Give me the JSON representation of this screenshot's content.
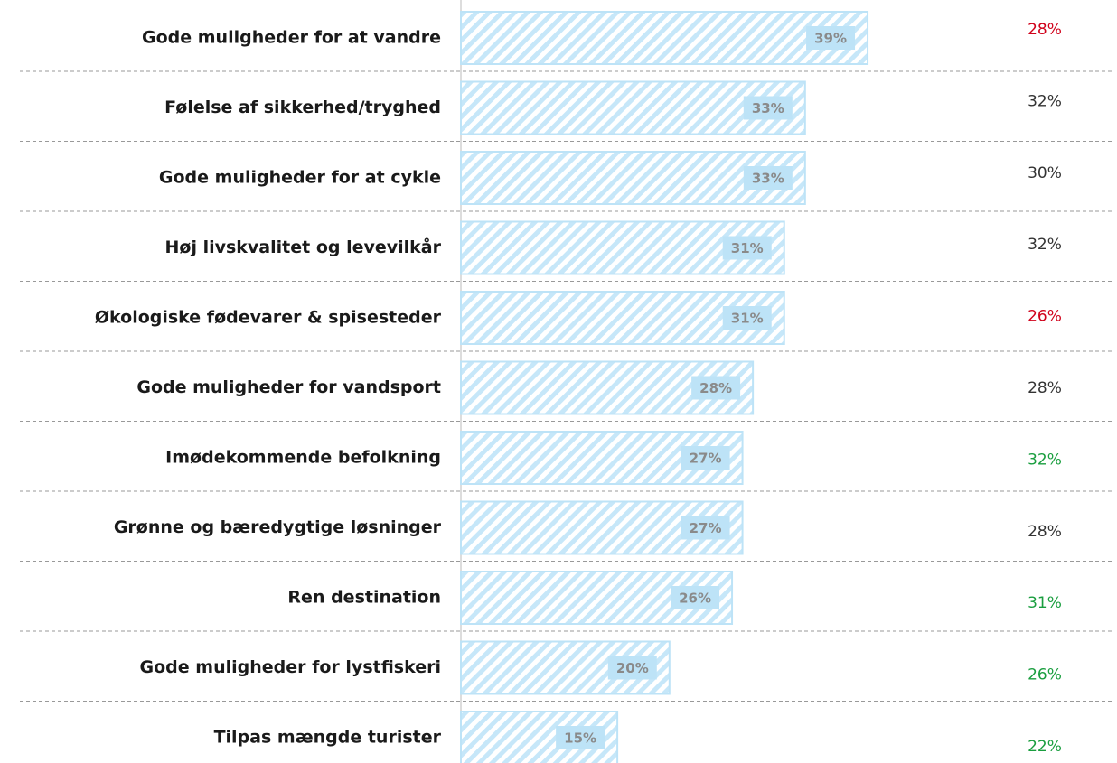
{
  "chart_data": {
    "type": "bar",
    "categories": [
      "Gode muligheder for at vandre",
      "Følelse af sikkerhed/tryghed",
      "Gode muligheder for at cykle",
      "Høj livskvalitet og levevilkår",
      "Økologiske fødevarer & spisesteder",
      "Gode muligheder for vandsport",
      "Imødekommende befolkning",
      "Grønne og bæredygtige løsninger",
      "Ren destination",
      "Gode muligheder for lystfiskeri",
      "Tilpas mængde turister"
    ],
    "series": [
      {
        "color": "#bde3f7",
        "values": [
          39,
          33,
          33,
          31,
          31,
          28,
          27,
          27,
          26,
          20,
          15
        ],
        "value_labels": [
          "39%",
          "33%",
          "33%",
          "31%",
          "31%",
          "28%",
          "27%",
          "27%",
          "26%",
          "20%",
          "15%"
        ]
      },
      {
        "colors": [
          "#d0021b",
          "#333333",
          "#333333",
          "#333333",
          "#d0021b",
          "#333333",
          "#1a9e3f",
          "#333333",
          "#1a9e3f",
          "#1a9e3f",
          "#1a9e3f"
        ],
        "values": [
          28,
          32,
          30,
          32,
          26,
          28,
          32,
          28,
          31,
          26,
          22
        ],
        "value_labels": [
          "28%",
          "32%",
          "30%",
          "32%",
          "26%",
          "28%",
          "32%",
          "28%",
          "31%",
          "26%",
          "22%"
        ]
      }
    ]
  }
}
